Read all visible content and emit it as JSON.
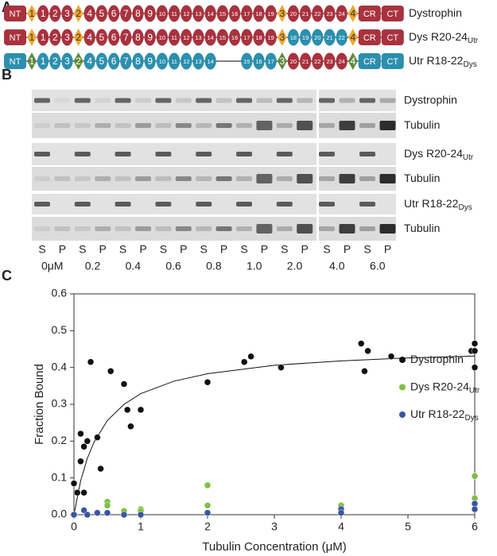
{
  "panel_a": {
    "letter": "A",
    "rows": [
      {
        "label": "Dystrophin",
        "elements": [
          {
            "kind": "box",
            "label": "NT",
            "color": "#a8323e"
          },
          {
            "kind": "diamond",
            "label": "1",
            "color": "#f0a830"
          },
          {
            "kind": "oval",
            "label": "1",
            "color": "#a8323e"
          },
          {
            "kind": "oval",
            "label": "2",
            "color": "#a8323e"
          },
          {
            "kind": "oval",
            "label": "3",
            "color": "#a8323e"
          },
          {
            "kind": "diamond",
            "label": "2",
            "color": "#f0a830"
          },
          {
            "kind": "oval",
            "label": "4",
            "color": "#a8323e"
          },
          {
            "kind": "oval",
            "label": "5",
            "color": "#a8323e"
          },
          {
            "kind": "oval",
            "label": "6",
            "color": "#a8323e"
          },
          {
            "kind": "oval",
            "label": "7",
            "color": "#a8323e"
          },
          {
            "kind": "oval",
            "label": "8",
            "color": "#a8323e"
          },
          {
            "kind": "oval",
            "label": "9",
            "color": "#a8323e"
          },
          {
            "kind": "oval",
            "label": "10",
            "color": "#a8323e"
          },
          {
            "kind": "oval",
            "label": "11",
            "color": "#a8323e"
          },
          {
            "kind": "oval",
            "label": "12",
            "color": "#a8323e"
          },
          {
            "kind": "oval",
            "label": "13",
            "color": "#a8323e"
          },
          {
            "kind": "oval",
            "label": "14",
            "color": "#a8323e"
          },
          {
            "kind": "oval",
            "label": "15",
            "color": "#a8323e"
          },
          {
            "kind": "oval",
            "label": "16",
            "color": "#a8323e"
          },
          {
            "kind": "oval",
            "label": "17",
            "color": "#a8323e"
          },
          {
            "kind": "oval",
            "label": "18",
            "color": "#a8323e"
          },
          {
            "kind": "oval",
            "label": "19",
            "color": "#a8323e"
          },
          {
            "kind": "diamond",
            "label": "3",
            "color": "#f0a830"
          },
          {
            "kind": "oval",
            "label": "20",
            "color": "#a8323e"
          },
          {
            "kind": "oval",
            "label": "21",
            "color": "#a8323e"
          },
          {
            "kind": "oval",
            "label": "22",
            "color": "#a8323e"
          },
          {
            "kind": "oval",
            "label": "23",
            "color": "#a8323e"
          },
          {
            "kind": "oval",
            "label": "24",
            "color": "#a8323e"
          },
          {
            "kind": "diamond",
            "label": "4",
            "color": "#f0a830"
          },
          {
            "kind": "box",
            "label": "CR",
            "color": "#a8323e"
          },
          {
            "kind": "box",
            "label": "CT",
            "color": "#a8323e"
          }
        ]
      },
      {
        "label": "Dys R20-24",
        "sub": "Utr",
        "elements": [
          {
            "kind": "box",
            "label": "NT",
            "color": "#a8323e"
          },
          {
            "kind": "diamond",
            "label": "1",
            "color": "#f0a830"
          },
          {
            "kind": "oval",
            "label": "1",
            "color": "#a8323e"
          },
          {
            "kind": "oval",
            "label": "2",
            "color": "#a8323e"
          },
          {
            "kind": "oval",
            "label": "3",
            "color": "#a8323e"
          },
          {
            "kind": "diamond",
            "label": "2",
            "color": "#f0a830"
          },
          {
            "kind": "oval",
            "label": "4",
            "color": "#a8323e"
          },
          {
            "kind": "oval",
            "label": "5",
            "color": "#a8323e"
          },
          {
            "kind": "oval",
            "label": "6",
            "color": "#a8323e"
          },
          {
            "kind": "oval",
            "label": "7",
            "color": "#a8323e"
          },
          {
            "kind": "oval",
            "label": "8",
            "color": "#a8323e"
          },
          {
            "kind": "oval",
            "label": "9",
            "color": "#a8323e"
          },
          {
            "kind": "oval",
            "label": "10",
            "color": "#a8323e"
          },
          {
            "kind": "oval",
            "label": "11",
            "color": "#a8323e"
          },
          {
            "kind": "oval",
            "label": "12",
            "color": "#a8323e"
          },
          {
            "kind": "oval",
            "label": "13",
            "color": "#a8323e"
          },
          {
            "kind": "oval",
            "label": "14",
            "color": "#a8323e"
          },
          {
            "kind": "oval",
            "label": "15",
            "color": "#a8323e"
          },
          {
            "kind": "oval",
            "label": "16",
            "color": "#a8323e"
          },
          {
            "kind": "oval",
            "label": "17",
            "color": "#a8323e"
          },
          {
            "kind": "oval",
            "label": "18",
            "color": "#a8323e"
          },
          {
            "kind": "oval",
            "label": "19",
            "color": "#a8323e"
          },
          {
            "kind": "diamond",
            "label": "3",
            "color": "#f0a830"
          },
          {
            "kind": "oval",
            "label": "18",
            "color": "#2b8fae"
          },
          {
            "kind": "oval",
            "label": "19",
            "color": "#2b8fae"
          },
          {
            "kind": "oval",
            "label": "20",
            "color": "#2b8fae"
          },
          {
            "kind": "oval",
            "label": "21",
            "color": "#2b8fae"
          },
          {
            "kind": "oval",
            "label": "22",
            "color": "#2b8fae"
          },
          {
            "kind": "diamond",
            "label": "4",
            "color": "#f0a830"
          },
          {
            "kind": "box",
            "label": "CR",
            "color": "#a8323e"
          },
          {
            "kind": "box",
            "label": "CT",
            "color": "#a8323e"
          }
        ]
      },
      {
        "label": "Utr R18-22",
        "sub": "Dys",
        "elements": [
          {
            "kind": "box",
            "label": "NT",
            "color": "#2b8fae"
          },
          {
            "kind": "diamond",
            "label": "1",
            "color": "#5e8a3c"
          },
          {
            "kind": "oval",
            "label": "1",
            "color": "#2b8fae"
          },
          {
            "kind": "oval",
            "label": "2",
            "color": "#2b8fae"
          },
          {
            "kind": "oval",
            "label": "3",
            "color": "#2b8fae"
          },
          {
            "kind": "diamond",
            "label": "2",
            "color": "#5e8a3c"
          },
          {
            "kind": "oval",
            "label": "4",
            "color": "#2b8fae"
          },
          {
            "kind": "oval",
            "label": "5",
            "color": "#2b8fae"
          },
          {
            "kind": "oval",
            "label": "6",
            "color": "#2b8fae"
          },
          {
            "kind": "oval",
            "label": "7",
            "color": "#2b8fae"
          },
          {
            "kind": "oval",
            "label": "8",
            "color": "#2b8fae"
          },
          {
            "kind": "oval",
            "label": "9",
            "color": "#2b8fae"
          },
          {
            "kind": "oval",
            "label": "10",
            "color": "#2b8fae"
          },
          {
            "kind": "oval",
            "label": "11",
            "color": "#2b8fae"
          },
          {
            "kind": "oval",
            "label": "12",
            "color": "#2b8fae"
          },
          {
            "kind": "oval",
            "label": "13",
            "color": "#2b8fae"
          },
          {
            "kind": "oval",
            "label": "14",
            "color": "#2b8fae"
          },
          {
            "kind": "oval",
            "label": "15",
            "color": "#2b8fae"
          },
          {
            "kind": "oval",
            "label": "16",
            "color": "#2b8fae"
          },
          {
            "kind": "oval",
            "label": "17",
            "color": "#2b8fae"
          },
          {
            "kind": "diamond",
            "label": "3",
            "color": "#5e8a3c"
          },
          {
            "kind": "oval",
            "label": "20",
            "color": "#a8323e"
          },
          {
            "kind": "oval",
            "label": "21",
            "color": "#a8323e"
          },
          {
            "kind": "oval",
            "label": "22",
            "color": "#a8323e"
          },
          {
            "kind": "oval",
            "label": "23",
            "color": "#a8323e"
          },
          {
            "kind": "oval",
            "label": "24",
            "color": "#a8323e"
          },
          {
            "kind": "diamond",
            "label": "4",
            "color": "#5e8a3c"
          },
          {
            "kind": "box",
            "label": "CR",
            "color": "#2b8fae"
          },
          {
            "kind": "box",
            "label": "CT",
            "color": "#2b8fae"
          }
        ]
      }
    ]
  },
  "panel_b": {
    "letter": "B",
    "strips": [
      {
        "label": "Dystrophin"
      },
      {
        "label": "Tubulin"
      },
      {
        "label": "Dys R20-24",
        "sub": "Utr"
      },
      {
        "label": "Tubulin"
      },
      {
        "label": "Utr R18-22",
        "sub": "Dys"
      },
      {
        "label": "Tubulin"
      }
    ],
    "lanes": [
      "S",
      "P",
      "S",
      "P",
      "S",
      "P",
      "S",
      "P",
      "S",
      "P",
      "S",
      "P",
      "S",
      "P",
      "S",
      "P",
      "S",
      "P"
    ],
    "concentrations": [
      "0μM",
      "0.2",
      "0.4",
      "0.6",
      "0.8",
      "1.0",
      "2.0",
      "4.0",
      "6.0"
    ]
  },
  "panel_c": {
    "letter": "C"
  },
  "chart_data": {
    "type": "scatter",
    "x_label": "Tubulin Concentration (μM)",
    "y_label": "Fraction Bound",
    "xlim": [
      0,
      6
    ],
    "xticks": [
      0,
      1,
      2,
      3,
      4,
      5,
      6
    ],
    "ylim": [
      0,
      0.6
    ],
    "yticks": [
      {
        "value": 0,
        "label": "0.0"
      },
      0.1,
      0.2,
      0.3,
      0.4,
      0.5,
      0.6
    ],
    "legend": "right",
    "series": [
      {
        "name": "Dystrophin",
        "color": "#111111",
        "x": [
          0,
          0.05,
          0.1,
          0.1,
          0.15,
          0.15,
          0.2,
          0.25,
          0.35,
          0.4,
          0.55,
          0.75,
          0.8,
          0.85,
          1.0,
          2.0,
          2.55,
          2.65,
          3.1,
          4.3,
          4.35,
          4.4,
          4.75,
          5.95,
          6.0,
          6.0,
          6.0
        ],
        "values": [
          0.085,
          0.06,
          0.145,
          0.22,
          0.06,
          0.185,
          0.2,
          0.415,
          0.21,
          0.125,
          0.39,
          0.355,
          0.285,
          0.24,
          0.285,
          0.36,
          0.415,
          0.43,
          0.4,
          0.465,
          0.39,
          0.445,
          0.43,
          0.445,
          0.465,
          0.445,
          0.4
        ]
      },
      {
        "name": "Dys R20-24",
        "name_sub": "Utr",
        "color": "#7dc142",
        "x": [
          0,
          0.2,
          0.35,
          0.5,
          0.5,
          0.75,
          1.0,
          1.0,
          2.0,
          2.0,
          4.0,
          6.0,
          6.0
        ],
        "values": [
          0,
          0,
          0.005,
          0.035,
          0.025,
          0.01,
          0.015,
          0.01,
          0.08,
          0.025,
          0.025,
          0.105,
          0.045
        ]
      },
      {
        "name": "Utr R18-22",
        "name_sub": "Dys",
        "color": "#3a55a4",
        "x": [
          0,
          0.15,
          0.2,
          0.35,
          0.5,
          0.75,
          1.0,
          2.0,
          4.0,
          4.0,
          6.0,
          6.0
        ],
        "values": [
          0,
          0.012,
          0,
          0.005,
          0.005,
          0,
          0,
          0.005,
          0.015,
          0.005,
          0.03,
          0.015
        ]
      }
    ],
    "fit": {
      "color": "#111111",
      "x": [
        0,
        0.1,
        0.2,
        0.3,
        0.5,
        0.75,
        1,
        1.5,
        2,
        3,
        4,
        5,
        6
      ],
      "values": [
        0,
        0.092,
        0.153,
        0.197,
        0.256,
        0.3,
        0.329,
        0.363,
        0.383,
        0.406,
        0.418,
        0.426,
        0.431
      ]
    }
  }
}
